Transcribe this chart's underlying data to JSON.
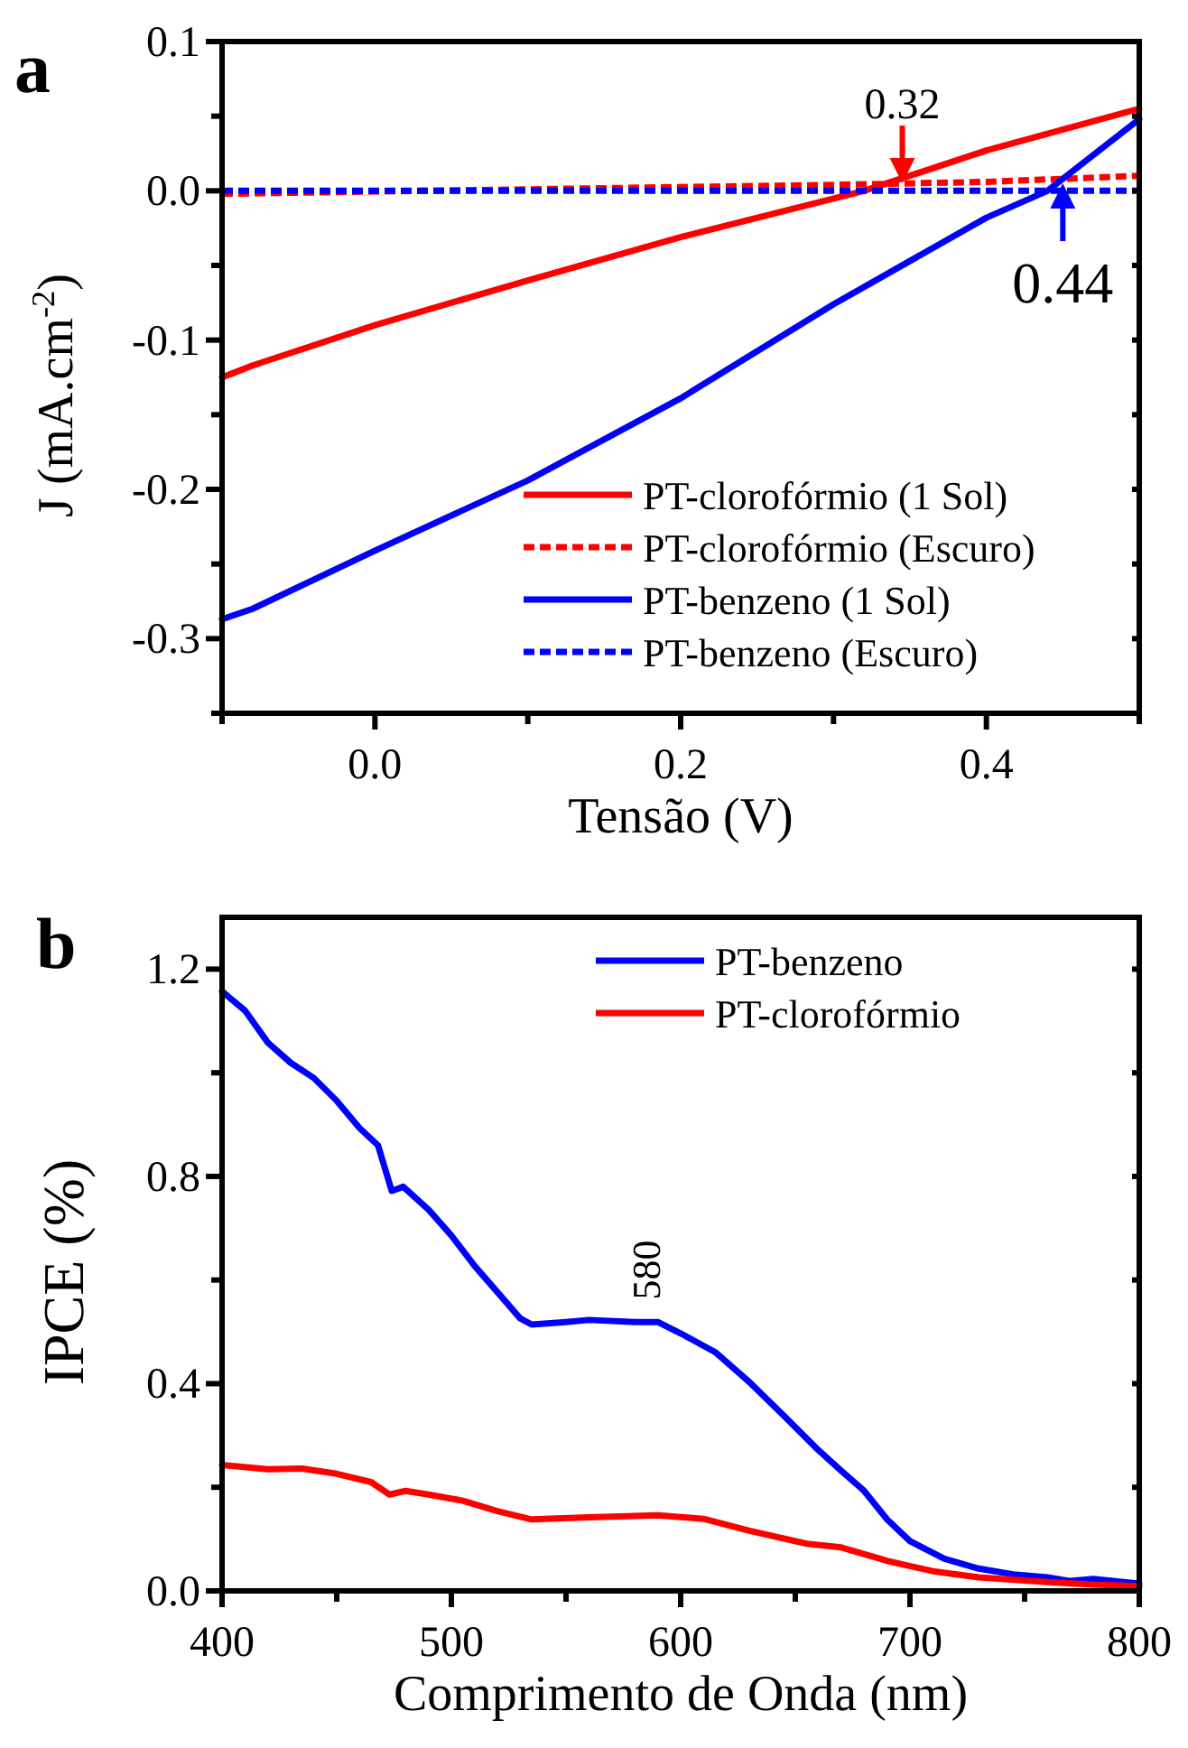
{
  "chart_data": [
    {
      "type": "line",
      "title": "a",
      "xlabel": "Tensão (V)",
      "ylabel": "J (mA.cm$^{-2}$)",
      "xlim": [
        -0.1,
        0.5
      ],
      "xticks": [
        {
          "value": -0.1,
          "label": null
        },
        {
          "value": 0,
          "label": "0.0"
        },
        {
          "value": 0.1,
          "label": null
        },
        0.2,
        {
          "value": 0.3,
          "label": null
        },
        0.4,
        {
          "value": 0.5,
          "label": null
        }
      ],
      "ylim": [
        -0.35,
        0.1
      ],
      "yticks": [
        {
          "value": -0.35,
          "label": null
        },
        -0.3,
        {
          "value": -0.25,
          "label": null
        },
        -0.2,
        {
          "value": -0.15,
          "label": null
        },
        -0.1,
        {
          "value": -0.05,
          "label": null
        },
        {
          "value": 0,
          "label": "0.0"
        },
        {
          "value": 0.05,
          "label": null
        },
        0.1
      ],
      "legend": "bottom right",
      "grid": false,
      "annotations": [
        {
          "text": "0.32",
          "x": 0.345,
          "y": 0.005
        },
        {
          "text": "0.44",
          "x": 0.45,
          "y": 0.005
        }
      ],
      "series": [
        {
          "name": "PT-clorofórmio (1 Sol)",
          "color": "#ff0000",
          "line_style": "solid",
          "x": [
            -0.1,
            -0.08,
            0.0,
            0.1,
            0.2,
            0.32,
            0.4,
            0.5
          ],
          "values": [
            -0.125,
            -0.117,
            -0.09,
            -0.06,
            -0.031,
            0.0,
            0.027,
            0.055
          ]
        },
        {
          "name": "PT-clorofórmio (Escuro)",
          "color": "#ff0000",
          "line_style": "dashed",
          "x": [
            -0.1,
            0.1,
            0.3,
            0.4,
            0.5
          ],
          "values": [
            -0.002,
            0.001,
            0.004,
            0.006,
            0.01
          ]
        },
        {
          "name": "PT-benzeno (1 Sol)",
          "color": "#0000ff",
          "line_style": "solid",
          "x": [
            -0.1,
            -0.08,
            0.0,
            0.1,
            0.2,
            0.3,
            0.4,
            0.44,
            0.5
          ],
          "values": [
            -0.287,
            -0.28,
            -0.241,
            -0.194,
            -0.139,
            -0.076,
            -0.018,
            0.0,
            0.048
          ]
        },
        {
          "name": "PT-benzeno (Escuro)",
          "color": "#0000ff",
          "line_style": "dashed",
          "x": [
            -0.1,
            0.5
          ],
          "values": [
            0.0,
            0.0
          ]
        }
      ]
    },
    {
      "type": "line",
      "title": "b",
      "xlabel": "Comprimento de Onda (nm)",
      "ylabel": "IPCE (%)",
      "xlim": [
        400,
        800
      ],
      "xticks": [
        400,
        {
          "value": 450,
          "label": null
        },
        500,
        {
          "value": 550,
          "label": null
        },
        600,
        {
          "value": 650,
          "label": null
        },
        700,
        {
          "value": 750,
          "label": null
        },
        800
      ],
      "ylim": [
        0,
        1.3
      ],
      "yticks": [
        {
          "value": 0,
          "label": "0.0"
        },
        {
          "value": 0.2,
          "label": null
        },
        0.4,
        {
          "value": 0.6,
          "label": null
        },
        0.8,
        {
          "value": 1.0,
          "label": null
        },
        1.2
      ],
      "legend": "top right",
      "grid": false,
      "annotations": [
        {
          "text": "580",
          "x": 580,
          "y": 0.52
        }
      ],
      "series": [
        {
          "name": "PT-benzeno",
          "color": "#0000ff",
          "line_style": "solid",
          "x": [
            400,
            410,
            420,
            430,
            440,
            450,
            460,
            468,
            474,
            479,
            490,
            500,
            510,
            520,
            530,
            535,
            550,
            560,
            580,
            590,
            600,
            615,
            630,
            645,
            660,
            670,
            680,
            690,
            700,
            715,
            730,
            745,
            760,
            770,
            780,
            800
          ],
          "values": [
            1.157,
            1.12,
            1.058,
            1.019,
            0.99,
            0.946,
            0.893,
            0.86,
            0.772,
            0.78,
            0.736,
            0.686,
            0.628,
            0.577,
            0.526,
            0.514,
            0.519,
            0.523,
            0.519,
            0.519,
            0.497,
            0.461,
            0.403,
            0.338,
            0.272,
            0.232,
            0.193,
            0.138,
            0.096,
            0.062,
            0.043,
            0.032,
            0.026,
            0.019,
            0.023,
            0.014
          ]
        },
        {
          "name": "PT-clorofórmio",
          "color": "#ff0000",
          "line_style": "solid",
          "x": [
            400,
            420,
            435,
            450,
            465,
            473,
            480,
            490,
            505,
            520,
            535,
            560,
            590,
            610,
            630,
            655,
            670,
            690,
            710,
            730,
            760,
            780,
            800
          ],
          "values": [
            0.243,
            0.235,
            0.236,
            0.226,
            0.21,
            0.186,
            0.193,
            0.186,
            0.174,
            0.154,
            0.138,
            0.142,
            0.146,
            0.139,
            0.116,
            0.091,
            0.084,
            0.058,
            0.038,
            0.026,
            0.017,
            0.012,
            0.009
          ]
        }
      ]
    }
  ]
}
